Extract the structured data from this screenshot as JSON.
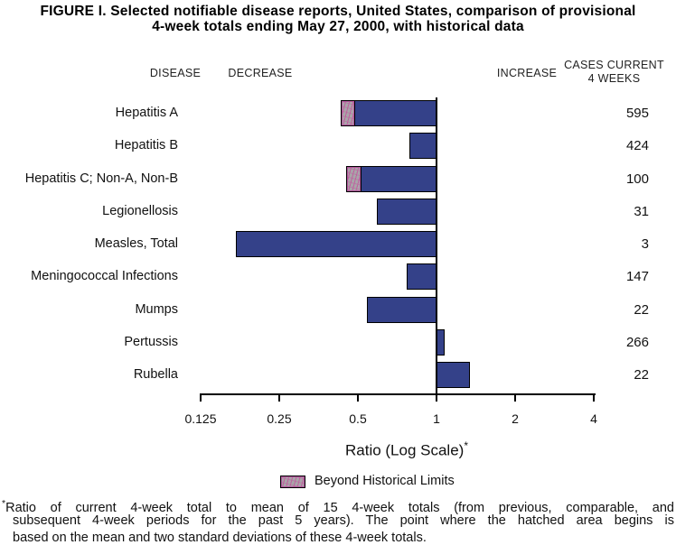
{
  "title": {
    "line1": "FIGURE I. Selected notifiable disease reports, United States, comparison of provisional",
    "line2": "4-week totals ending May 27, 2000, with historical data"
  },
  "headers": {
    "disease": "DISEASE",
    "decrease": "DECREASE",
    "increase": "INCREASE",
    "cases_line1": "CASES CURRENT",
    "cases_line2": "4 WEEKS"
  },
  "chart_data": {
    "type": "bar",
    "orientation": "horizontal",
    "scale": "log",
    "title": "Selected notifiable disease reports, United States, comparison of provisional 4-week totals ending May 27, 2000, with historical data",
    "xlabel": "Ratio (Log Scale)",
    "xlabel_sup": "*",
    "xlim": [
      0.125,
      4
    ],
    "baseline_ratio": 1,
    "x_ticks": [
      0.125,
      0.25,
      0.5,
      1,
      2,
      4
    ],
    "x_tick_labels": [
      "0.125",
      "0.25",
      "0.5",
      "1",
      "2",
      "4"
    ],
    "rows": [
      {
        "disease": "Hepatitis A",
        "ratio": 0.43,
        "beyond_limit_to": 0.48,
        "cases": "595"
      },
      {
        "disease": "Hepatitis B",
        "ratio": 0.79,
        "beyond_limit_to": null,
        "cases": "424"
      },
      {
        "disease": "Hepatitis C; Non-A, Non-B",
        "ratio": 0.45,
        "beyond_limit_to": 0.51,
        "cases": "100"
      },
      {
        "disease": "Legionellosis",
        "ratio": 0.59,
        "beyond_limit_to": null,
        "cases": "31"
      },
      {
        "disease": "Measles, Total",
        "ratio": 0.17,
        "beyond_limit_to": null,
        "cases": "3"
      },
      {
        "disease": "Meningococcal Infections",
        "ratio": 0.77,
        "beyond_limit_to": null,
        "cases": "147"
      },
      {
        "disease": "Mumps",
        "ratio": 0.54,
        "beyond_limit_to": null,
        "cases": "22"
      },
      {
        "disease": "Pertussis",
        "ratio": 1.07,
        "beyond_limit_to": null,
        "cases": "266"
      },
      {
        "disease": "Rubella",
        "ratio": 1.33,
        "beyond_limit_to": null,
        "cases": "22"
      }
    ],
    "bar_color": "#344189",
    "hatch_gray": "#a9a5a9",
    "hatch_pink": "#c05f9f",
    "legend_position": "bottom"
  },
  "legend": {
    "label": "Beyond Historical Limits"
  },
  "footnote": {
    "sup": "*",
    "line1": "Ratio of current 4-week total to mean of 15 4-week totals (from previous, comparable, and",
    "line2": "subsequent 4-week periods for the past 5 years). The point where the hatched area begins is",
    "line3": "based on the mean and two standard deviations of these 4-week totals."
  }
}
